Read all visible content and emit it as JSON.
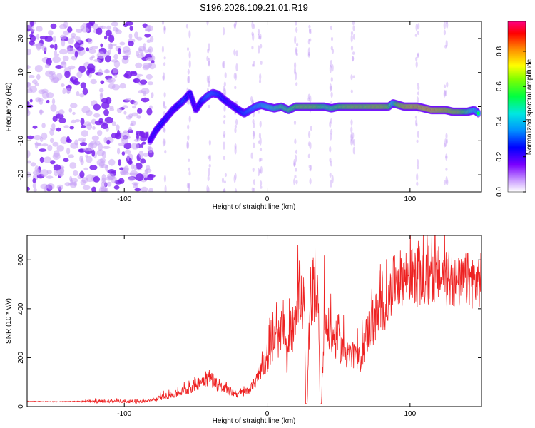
{
  "title": "S196.2026.109.21.01.R19",
  "colors": {
    "snr_line": "#ee2222",
    "axis": "#000000",
    "background": "#ffffff",
    "scatter": "#7a2ee6",
    "colormap": [
      "#ffffff",
      "#c080ff",
      "#6a00ff",
      "#0000ff",
      "#00c0ff",
      "#00ff80",
      "#60ff00",
      "#ffff00",
      "#ff8000",
      "#ff0000",
      "#ff00a0"
    ]
  },
  "chart_data": [
    {
      "type": "heatmap",
      "title": "S196.2026.109.21.01.R19",
      "xlabel": "Height of straight line (km)",
      "ylabel": "Frequency (Hz)",
      "xlim": [
        -168,
        150
      ],
      "ylim": [
        -25,
        25
      ],
      "xticks": [
        -100,
        0,
        100
      ],
      "yticks": [
        -20,
        -10,
        0,
        10,
        20
      ],
      "colorbar": {
        "label": "Normalized spectral amplitude",
        "range": [
          0,
          0.97
        ],
        "ticks": [
          "0.0",
          "0.2",
          "0.4",
          "0.6",
          "0.8"
        ]
      },
      "ridge": {
        "x": [
          -82,
          -78,
          -74,
          -70,
          -66,
          -62,
          -58,
          -54,
          -50,
          -46,
          -42,
          -38,
          -34,
          -30,
          -25,
          -20,
          -16,
          -12,
          -8,
          -4,
          0,
          5,
          10,
          15,
          20,
          25,
          30,
          35,
          40,
          45,
          50,
          55,
          60,
          65,
          70,
          75,
          80,
          85,
          88,
          92,
          96,
          100,
          105,
          110,
          115,
          120,
          125,
          130,
          135,
          140,
          145,
          148
        ],
        "freq": [
          -10,
          -7,
          -5,
          -3,
          -1,
          0.5,
          2,
          4,
          -1,
          1.5,
          3,
          4,
          3.5,
          2,
          0.5,
          -1,
          -2,
          -1,
          0,
          0.5,
          0,
          -0.5,
          0,
          -1,
          0,
          0,
          0,
          0,
          0,
          -0.5,
          0,
          0,
          0,
          0,
          0,
          0,
          0,
          0,
          1,
          0.5,
          0,
          0,
          0,
          -0.5,
          -1,
          -1,
          -1,
          -1.5,
          -1.5,
          -1.5,
          -1,
          -2
        ],
        "amplitude": [
          0.25,
          0.3,
          0.35,
          0.32,
          0.3,
          0.35,
          0.4,
          0.3,
          0.25,
          0.35,
          0.45,
          0.45,
          0.4,
          0.35,
          0.3,
          0.35,
          0.4,
          0.45,
          0.5,
          0.55,
          0.6,
          0.65,
          0.7,
          0.7,
          0.75,
          0.8,
          0.8,
          0.78,
          0.7,
          0.7,
          0.75,
          0.8,
          0.82,
          0.82,
          0.82,
          0.85,
          0.85,
          0.8,
          0.6,
          0.82,
          0.88,
          0.9,
          0.9,
          0.92,
          0.92,
          0.9,
          0.88,
          0.85,
          0.82,
          0.7,
          0.6,
          0.55
        ]
      },
      "noise_region_x": [
        -168,
        -80
      ]
    },
    {
      "type": "line",
      "xlabel": "Height of straight line (km)",
      "ylabel": "SNR (10 * v/v)",
      "xlim": [
        -168,
        150
      ],
      "ylim": [
        0,
        700
      ],
      "xticks": [
        -100,
        0,
        100
      ],
      "yticks": [
        0,
        200,
        400,
        600
      ],
      "series": [
        {
          "name": "SNR",
          "x": [
            -168,
            -150,
            -130,
            -110,
            -90,
            -80,
            -75,
            -70,
            -65,
            -60,
            -55,
            -50,
            -45,
            -40,
            -35,
            -30,
            -25,
            -20,
            -15,
            -10,
            -8,
            -5,
            -2,
            0,
            2,
            4,
            6,
            8,
            10,
            12,
            14,
            16,
            18,
            20,
            22,
            24,
            26,
            27,
            28,
            30,
            32,
            34,
            36,
            37,
            38,
            40,
            42,
            45,
            50,
            55,
            60,
            65,
            70,
            75,
            80,
            83,
            85,
            86,
            88,
            90,
            95,
            100,
            105,
            110,
            115,
            120,
            125,
            130,
            135,
            140,
            145,
            150
          ],
          "values": [
            20,
            18,
            20,
            22,
            20,
            25,
            35,
            45,
            50,
            60,
            70,
            90,
            110,
            120,
            90,
            70,
            60,
            50,
            60,
            80,
            110,
            150,
            180,
            200,
            230,
            250,
            270,
            280,
            300,
            300,
            180,
            300,
            320,
            420,
            480,
            450,
            400,
            10,
            10,
            440,
            480,
            460,
            400,
            10,
            10,
            380,
            320,
            290,
            260,
            220,
            200,
            190,
            300,
            360,
            380,
            400,
            430,
            460,
            500,
            520,
            530,
            540,
            520,
            510,
            530,
            540,
            520,
            510,
            500,
            520,
            510,
            520
          ]
        }
      ]
    }
  ]
}
